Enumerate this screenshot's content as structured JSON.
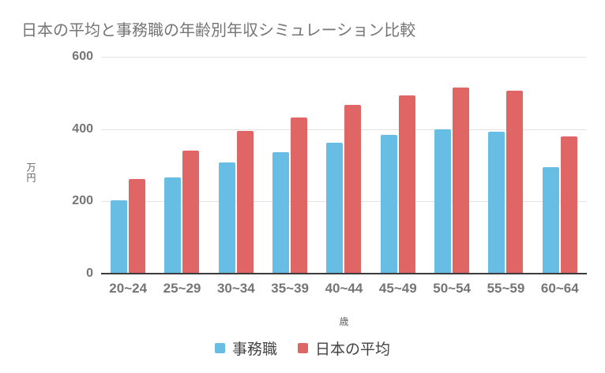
{
  "chart_data": {
    "type": "bar",
    "title": "日本の平均と事務職の年齢別年収シミュレーション比較",
    "categories": [
      "20~24",
      "25~29",
      "30~34",
      "35~39",
      "40~44",
      "45~49",
      "50~54",
      "55~59",
      "60~64"
    ],
    "series": [
      {
        "name": "事務職",
        "color": "#67BDE3",
        "values": [
          204,
          266,
          307,
          335,
          362,
          385,
          400,
          393,
          295
        ]
      },
      {
        "name": "日本の平均",
        "color": "#E06666",
        "values": [
          262,
          341,
          395,
          432,
          466,
          493,
          515,
          506,
          380
        ]
      }
    ],
    "xlabel": "歳",
    "ylabel": "万円",
    "ylim": [
      0,
      600
    ],
    "yticks": [
      0,
      200,
      400,
      600
    ],
    "grid": true,
    "legend_position": "bottom",
    "colors": {
      "title_text": "#757575",
      "tick_text": "#757575",
      "axis_line": "#3c3c3c",
      "gridline": "#e3e3e3",
      "legend_text": "#424242",
      "background": "#ffffff"
    }
  }
}
